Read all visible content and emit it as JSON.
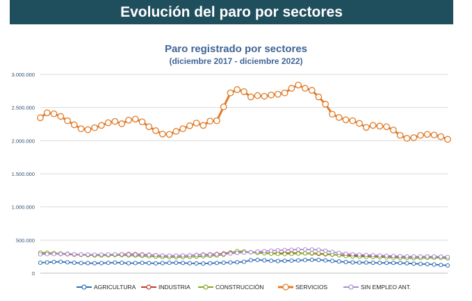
{
  "banner": {
    "title": "Evolución del paro por sectores"
  },
  "chart_data": {
    "type": "line",
    "title": "Paro registrado por sectores",
    "subtitle": "(diciembre 2017 - diciembre 2022)",
    "xlabel": "",
    "ylabel": "",
    "ylim": [
      0,
      3000000
    ],
    "yticks": [
      0,
      500000,
      1000000,
      1500000,
      2000000,
      2500000,
      3000000
    ],
    "ytick_labels": [
      "0",
      "500.000",
      "1.000.000",
      "1.500.000",
      "2.000.000",
      "2.500.000",
      "3.000.000"
    ],
    "grid": true,
    "legend": "bottom",
    "x_count": 61,
    "series": [
      {
        "name": "AGRICULTURA",
        "color": "#2e6db4",
        "values": [
          158000,
          163000,
          170000,
          172000,
          165000,
          158000,
          153000,
          152000,
          150000,
          152000,
          156000,
          160000,
          157000,
          150000,
          153000,
          156000,
          152000,
          149000,
          152000,
          156000,
          158000,
          154000,
          150000,
          148000,
          146000,
          150000,
          154000,
          158000,
          162000,
          166000,
          172000,
          196000,
          200000,
          194000,
          188000,
          184000,
          187000,
          190000,
          193000,
          198000,
          202000,
          200000,
          193000,
          185000,
          176000,
          168000,
          163000,
          160000,
          160000,
          157000,
          156000,
          155000,
          155000,
          154000,
          150000,
          144000,
          140000,
          136000,
          131000,
          124000,
          118000
        ]
      },
      {
        "name": "INDUSTRIA",
        "color": "#c0392b",
        "values": [
          290000,
          293000,
          292000,
          290000,
          285000,
          280000,
          278000,
          275000,
          274000,
          276000,
          278000,
          281000,
          286000,
          289000,
          287000,
          283000,
          279000,
          273000,
          266000,
          262000,
          263000,
          266000,
          270000,
          276000,
          282000,
          285000,
          290000,
          298000,
          312000,
          325000,
          322000,
          318000,
          312000,
          305000,
          300000,
          299000,
          302000,
          304000,
          303000,
          300000,
          297000,
          292000,
          285000,
          280000,
          275000,
          272000,
          268000,
          265000,
          262000,
          260000,
          257000,
          254000,
          252000,
          250000,
          249000,
          248000,
          249000,
          251000,
          250000,
          248000,
          240000
        ]
      },
      {
        "name": "CONSTRUCCIÓN",
        "color": "#7fa828",
        "values": [
          312000,
          308000,
          302000,
          298000,
          295000,
          285000,
          278000,
          272000,
          268000,
          268000,
          270000,
          273000,
          272000,
          268000,
          265000,
          260000,
          256000,
          250000,
          245000,
          242000,
          242000,
          243000,
          246000,
          250000,
          256000,
          262000,
          268000,
          278000,
          305000,
          332000,
          328000,
          315000,
          305000,
          300000,
          295000,
          291000,
          290000,
          292000,
          296000,
          300000,
          302000,
          300000,
          292000,
          283000,
          270000,
          258000,
          252000,
          250000,
          246000,
          244000,
          241000,
          238000,
          234000,
          230000,
          228000,
          227000,
          229000,
          232000,
          233000,
          232000,
          222000
        ]
      },
      {
        "name": "SERVICIOS",
        "color": "#e07b28",
        "values": [
          2345000,
          2420000,
          2405000,
          2365000,
          2300000,
          2240000,
          2180000,
          2165000,
          2195000,
          2230000,
          2270000,
          2290000,
          2255000,
          2310000,
          2325000,
          2285000,
          2210000,
          2150000,
          2100000,
          2095000,
          2140000,
          2180000,
          2225000,
          2265000,
          2230000,
          2295000,
          2300000,
          2510000,
          2720000,
          2770000,
          2740000,
          2660000,
          2680000,
          2670000,
          2690000,
          2700000,
          2720000,
          2790000,
          2840000,
          2790000,
          2760000,
          2660000,
          2550000,
          2400000,
          2350000,
          2315000,
          2300000,
          2260000,
          2200000,
          2230000,
          2220000,
          2210000,
          2160000,
          2080000,
          2035000,
          2045000,
          2080000,
          2095000,
          2085000,
          2060000,
          2020000
        ]
      },
      {
        "name": "SIN EMPLEO ANT.",
        "color": "#a98bd0",
        "values": [
          285000,
          288000,
          290000,
          292000,
          289000,
          286000,
          283000,
          281000,
          280000,
          281000,
          283000,
          285000,
          284000,
          283000,
          281000,
          279000,
          276000,
          272000,
          268000,
          266000,
          266000,
          268000,
          271000,
          274000,
          278000,
          281000,
          284000,
          288000,
          296000,
          305000,
          310000,
          316000,
          325000,
          333000,
          340000,
          345000,
          350000,
          354000,
          357000,
          358000,
          357000,
          352000,
          340000,
          322000,
          305000,
          294000,
          285000,
          280000,
          276000,
          272000,
          268000,
          264000,
          260000,
          257000,
          254000,
          252000,
          251000,
          251000,
          252000,
          250000,
          245000
        ]
      }
    ]
  }
}
